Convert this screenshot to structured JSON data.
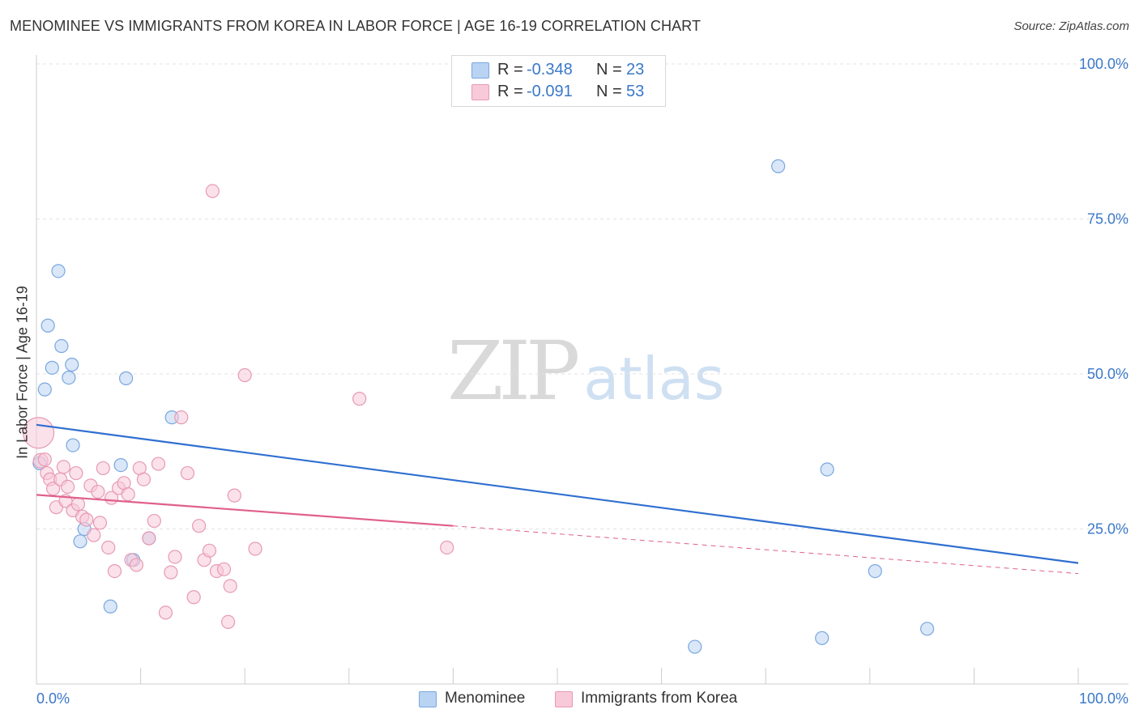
{
  "title": "MENOMINEE VS IMMIGRANTS FROM KOREA IN LABOR FORCE | AGE 16-19 CORRELATION CHART",
  "source": "Source: ZipAtlas.com",
  "watermark": {
    "zip": "ZIP",
    "atlas": "atlas"
  },
  "legend": {
    "rows": [
      {
        "r_label": "R =",
        "r_value": "-0.348",
        "n_label": "N =",
        "n_value": "23",
        "color": "#b9d3f3",
        "border": "#7aa7df"
      },
      {
        "r_label": "R =",
        "r_value": "-0.091",
        "n_label": "N =",
        "n_value": "53",
        "color": "#f8c9d8",
        "border": "#e79ab4"
      }
    ]
  },
  "bottom_legend": [
    {
      "label": "Menominee",
      "color": "#b9d3f3",
      "border": "#7aa7df"
    },
    {
      "label": "Immigrants from Korea",
      "color": "#f8c9d8",
      "border": "#e79ab4"
    }
  ],
  "chart_data": {
    "type": "scatter",
    "title": "MENOMINEE VS IMMIGRANTS FROM KOREA IN LABOR FORCE | AGE 16-19 CORRELATION CHART",
    "xlabel": "",
    "ylabel": "In Labor Force | Age 16-19",
    "xlim": [
      0,
      100
    ],
    "ylim": [
      0,
      100
    ],
    "x_tick_labels": [
      "0.0%",
      "100.0%"
    ],
    "y_ticks": [
      25,
      50,
      75,
      100
    ],
    "y_tick_labels": [
      "25.0%",
      "50.0%",
      "75.0%",
      "100.0%"
    ],
    "grid": true,
    "series": [
      {
        "name": "Menominee",
        "color": "#7aa7df",
        "fill": "#b9d3f3",
        "line_color": "#2f6fd0",
        "R": -0.348,
        "N": 23,
        "trend": {
          "x0": 0,
          "y0": 41.8,
          "x1": 100,
          "y1": 19.5
        },
        "x": [
          0.3,
          0.8,
          1.1,
          1.5,
          2.1,
          2.4,
          3.1,
          3.4,
          3.5,
          4.2,
          4.6,
          7.1,
          8.1,
          8.6,
          9.3,
          10.8,
          13.0,
          63.2,
          71.2,
          75.4,
          75.9,
          80.5,
          85.5
        ],
        "y": [
          35.6,
          47.5,
          57.8,
          51.0,
          66.6,
          54.5,
          49.4,
          51.5,
          38.5,
          23.0,
          25.0,
          12.5,
          35.3,
          49.3,
          20.0,
          23.5,
          43.0,
          6.0,
          83.5,
          7.4,
          34.6,
          18.2,
          8.9
        ]
      },
      {
        "name": "Immigrants from Korea",
        "color": "#e79ab4",
        "fill": "#f8c9d8",
        "line_color": "#e0608a",
        "R": -0.091,
        "N": 53,
        "trend": {
          "x0": 0,
          "y0": 30.5,
          "x1": 40.0,
          "y1": 25.5
        },
        "trend_dashed": {
          "x0": 40.0,
          "y0": 25.5,
          "x1": 100,
          "y1": 17.8
        },
        "x": [
          0.2,
          0.4,
          0.8,
          1.0,
          1.3,
          1.6,
          1.9,
          2.3,
          2.6,
          2.8,
          3.0,
          3.5,
          3.8,
          4.0,
          4.4,
          4.8,
          5.2,
          5.5,
          5.9,
          6.1,
          6.4,
          6.9,
          7.2,
          7.5,
          7.9,
          8.4,
          8.8,
          9.1,
          9.6,
          9.9,
          10.3,
          10.8,
          11.3,
          11.7,
          12.4,
          12.9,
          13.3,
          13.9,
          14.5,
          15.1,
          15.6,
          16.1,
          16.6,
          16.9,
          17.3,
          18.0,
          18.4,
          18.6,
          19.0,
          20.0,
          21.0,
          31.0,
          39.4
        ],
        "y": [
          40.5,
          36.0,
          36.2,
          34.0,
          33.0,
          31.5,
          28.5,
          33.0,
          35.0,
          29.5,
          31.8,
          28.0,
          34.0,
          29.0,
          27.0,
          26.5,
          32.0,
          24.0,
          31.0,
          26.0,
          34.8,
          22.0,
          30.0,
          18.2,
          31.6,
          32.4,
          30.6,
          20.0,
          19.2,
          34.8,
          33.0,
          23.5,
          26.3,
          35.5,
          11.5,
          18.0,
          20.5,
          43.0,
          34.0,
          14.0,
          25.5,
          20.0,
          21.5,
          79.5,
          18.2,
          18.5,
          10.0,
          15.8,
          30.4,
          49.8,
          21.8,
          46.0,
          22.0
        ],
        "sizes": [
          34,
          14,
          12,
          12,
          12,
          12,
          12,
          12,
          12,
          12,
          12,
          12,
          12,
          12,
          12,
          12,
          12,
          12,
          12,
          12,
          12,
          12,
          12,
          12,
          12,
          12,
          12,
          12,
          12,
          12,
          12,
          12,
          12,
          12,
          12,
          12,
          12,
          12,
          12,
          12,
          12,
          12,
          12,
          12,
          12,
          12,
          12,
          12,
          12,
          12,
          12,
          12,
          12
        ]
      }
    ]
  }
}
